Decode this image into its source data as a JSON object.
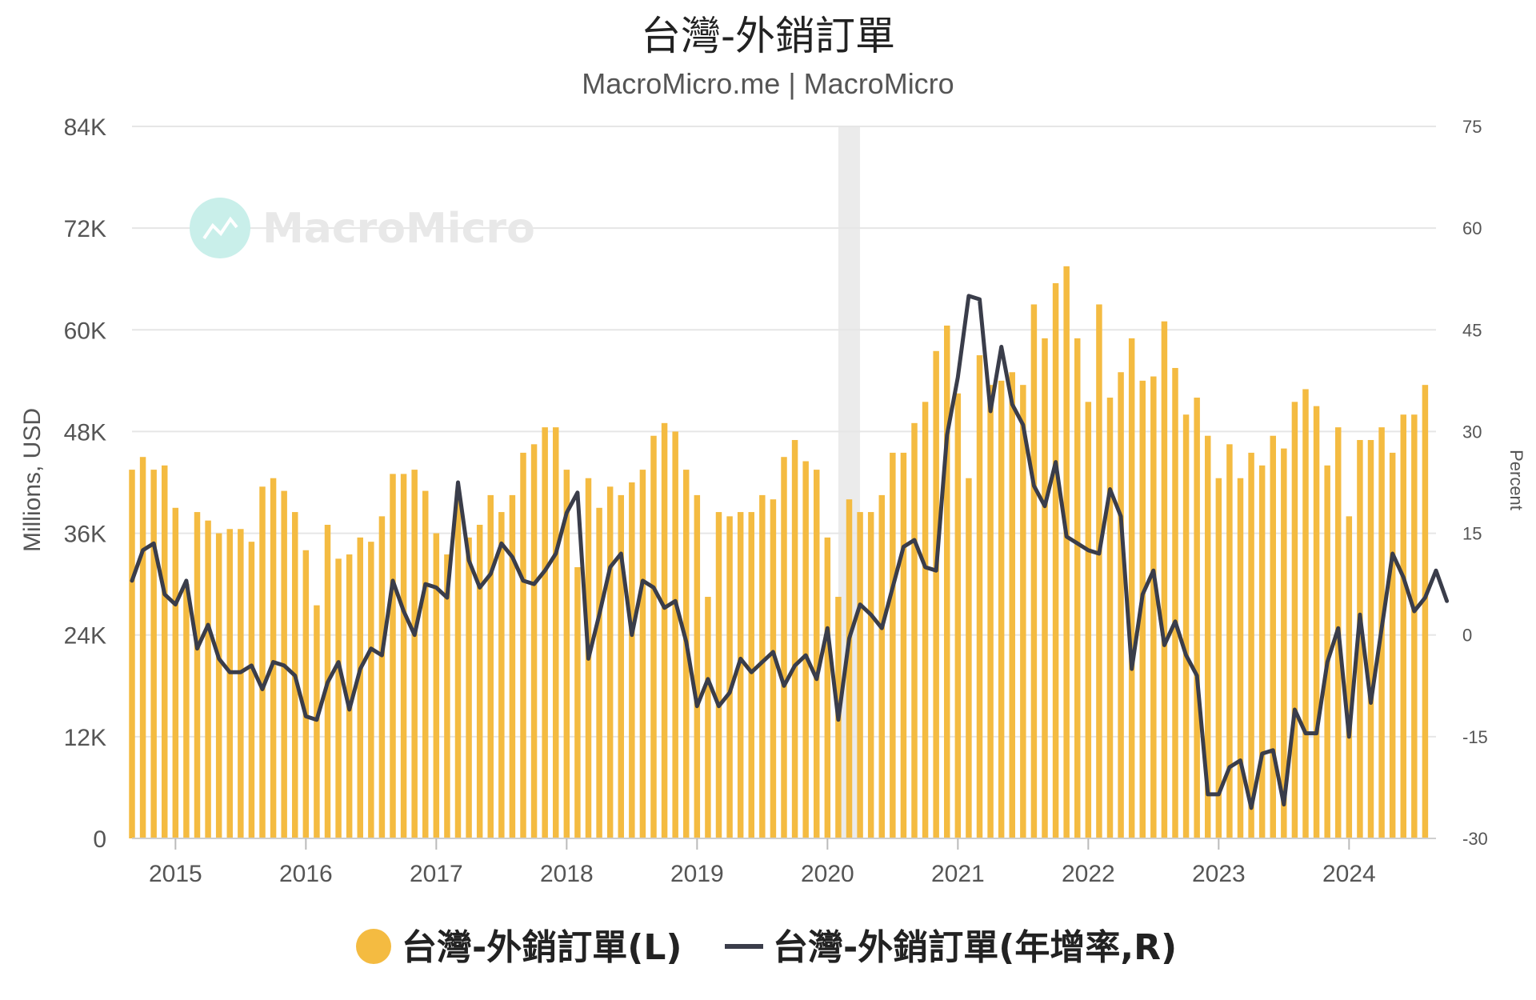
{
  "colors": {
    "bar": "#F4BB41",
    "line": "#3A3D4A",
    "grid": "#E6E6E6",
    "recession": "#EBEBEB",
    "watermark": "#C9EFEA"
  },
  "chart_data": {
    "type": "bar",
    "title": "台灣-外銷訂單",
    "subtitle": "MacroMicro.me | MacroMicro",
    "watermark": "MacroMicro",
    "ylabel_left": "Millions, USD",
    "ylabel_right": "Percent",
    "ylim_left": [
      0,
      84000
    ],
    "ylim_right": [
      -30,
      75
    ],
    "yticks_left": [
      "0",
      "12K",
      "24K",
      "36K",
      "48K",
      "60K",
      "72K",
      "84K"
    ],
    "yticks_right": [
      "-30",
      "-15",
      "0",
      "15",
      "30",
      "45",
      "60",
      "75"
    ],
    "xticks": [
      "2015",
      "2016",
      "2017",
      "2018",
      "2019",
      "2020",
      "2021",
      "2022",
      "2023",
      "2024"
    ],
    "x_start": "2014-09",
    "x_end": "2024-09",
    "recession_band": [
      "2020-02",
      "2020-04"
    ],
    "legend": [
      "台灣-外銷訂單(L)",
      "台灣-外銷訂單(年增率,R)"
    ],
    "series": [
      {
        "name": "台灣-外銷訂單(L)",
        "type": "bar",
        "axis": "left",
        "values": [
          43500,
          45000,
          43500,
          44000,
          39000,
          30000,
          38500,
          37500,
          36000,
          36500,
          36500,
          35000,
          41500,
          42500,
          41000,
          38500,
          34000,
          27500,
          37000,
          33000,
          33500,
          35500,
          35000,
          38000,
          43000,
          43000,
          43500,
          41000,
          36000,
          33500,
          41000,
          35500,
          37000,
          40500,
          38500,
          40500,
          45500,
          46500,
          48500,
          48500,
          43500,
          32000,
          42500,
          39000,
          41500,
          40500,
          42000,
          43500,
          47500,
          49000,
          48000,
          43500,
          40500,
          28500,
          38500,
          38000,
          38500,
          38500,
          40500,
          40000,
          45000,
          47000,
          44500,
          43500,
          35500,
          28500,
          40000,
          38500,
          38500,
          40500,
          45500,
          45500,
          49000,
          51500,
          57500,
          60500,
          52500,
          42500,
          57000,
          53500,
          54000,
          55000,
          53500,
          63000,
          59000,
          65500,
          67500,
          59000,
          51500,
          63000,
          52000,
          55000,
          59000,
          54000,
          54500,
          61000,
          55500,
          50000,
          52000,
          47500,
          42500,
          46500,
          42500,
          45500,
          44000,
          47500,
          46000,
          51500,
          53000,
          51000,
          44000,
          48500,
          38000,
          47000,
          47000,
          48500,
          45500,
          50000,
          50000,
          53500
        ]
      },
      {
        "name": "台灣-外銷訂單(年增率,R)",
        "type": "line",
        "axis": "right",
        "values": [
          8,
          12.5,
          13.5,
          6,
          4.5,
          8,
          -2,
          1.5,
          -3.5,
          -5.5,
          -5.5,
          -4.5,
          -8,
          -4,
          -4.5,
          -6,
          -12,
          -12.5,
          -7,
          -4,
          -11,
          -5,
          -2,
          -3,
          8,
          3.5,
          0,
          7.5,
          7,
          5.5,
          22.5,
          11,
          7,
          9,
          13.5,
          11.5,
          8,
          7.5,
          9.5,
          12,
          18,
          21,
          -3.5,
          3,
          10,
          12,
          0,
          8,
          7,
          4,
          5,
          -1,
          -10.5,
          -6.5,
          -10.5,
          -8.5,
          -3.5,
          -5.5,
          -4,
          -2.5,
          -7.5,
          -4.5,
          -3,
          -6.5,
          1,
          -12.5,
          -0.5,
          4.5,
          3,
          1,
          7,
          13,
          14,
          10,
          9.5,
          29.5,
          38,
          50,
          49.5,
          33,
          42.5,
          34,
          31,
          22,
          19,
          25.5,
          14.5,
          13.5,
          12.5,
          12,
          21.5,
          17.5,
          -5,
          6,
          9.5,
          -1.5,
          2,
          -3,
          -6,
          -23.5,
          -23.5,
          -19.5,
          -18.5,
          -25.5,
          -17.5,
          -17,
          -25,
          -11,
          -14.5,
          -14.5,
          -4,
          1,
          -15,
          3,
          -10,
          1,
          12,
          8.5,
          3.5,
          5.5,
          9.5,
          5
        ]
      }
    ]
  }
}
